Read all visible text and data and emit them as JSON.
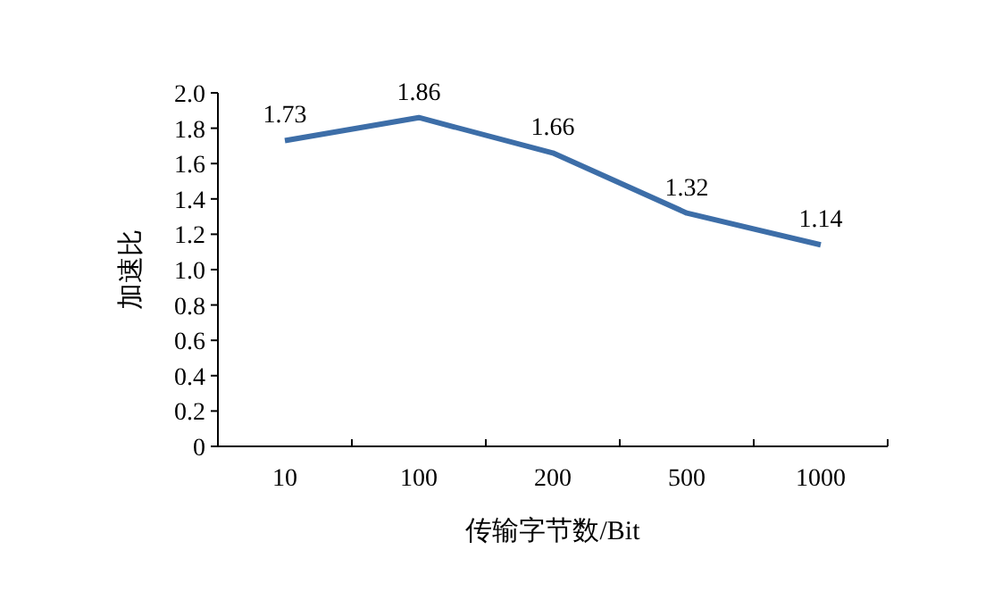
{
  "chart_data": {
    "type": "line",
    "xlabel": "传输字节数/Bit",
    "ylabel": "加速比",
    "categories": [
      "10",
      "100",
      "200",
      "500",
      "1000"
    ],
    "series": [
      {
        "color": "#3d6ea8",
        "values": [
          1.73,
          1.86,
          1.66,
          1.32,
          1.14
        ]
      }
    ],
    "ylim": [
      0,
      2
    ],
    "yticks": [
      0,
      0.2,
      0.4,
      0.6,
      0.8,
      {
        "value": 1,
        "label": "1.0"
      },
      1.2,
      1.4,
      1.6,
      1.8,
      {
        "value": 2,
        "label": "2.0"
      }
    ],
    "data_labels": true,
    "marker": "none",
    "line_style": "solid"
  }
}
